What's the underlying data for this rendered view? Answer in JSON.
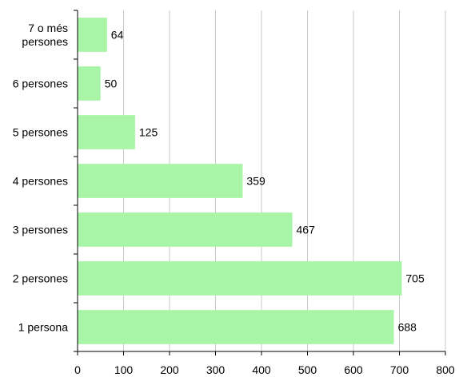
{
  "chart_data": {
    "type": "bar",
    "orientation": "horizontal",
    "categories": [
      "1 persona",
      "2 persones",
      "3 persones",
      "4 persones",
      "5 persones",
      "6 persones",
      "7 o més persones"
    ],
    "category_lines": [
      [
        "1 persona"
      ],
      [
        "2 persones"
      ],
      [
        "3 persones"
      ],
      [
        "4 persones"
      ],
      [
        "5 persones"
      ],
      [
        "6 persones"
      ],
      [
        "7 o més",
        "persones"
      ]
    ],
    "values": [
      688,
      705,
      467,
      359,
      125,
      50,
      64
    ],
    "value_labels": [
      "688",
      "705",
      "467",
      "359",
      "125",
      "50",
      "64"
    ],
    "xlim": [
      0,
      800
    ],
    "xticks": [
      0,
      100,
      200,
      300,
      400,
      500,
      600,
      700,
      800
    ],
    "xtick_labels": [
      "0",
      "100",
      "200",
      "300",
      "400",
      "500",
      "600",
      "700",
      "800"
    ],
    "grid": "vertical",
    "title": "",
    "xlabel": "",
    "ylabel": "",
    "colors": {
      "bar": "#a8f5a8",
      "grid": "#c8c8c8",
      "axis": "#000000"
    }
  }
}
